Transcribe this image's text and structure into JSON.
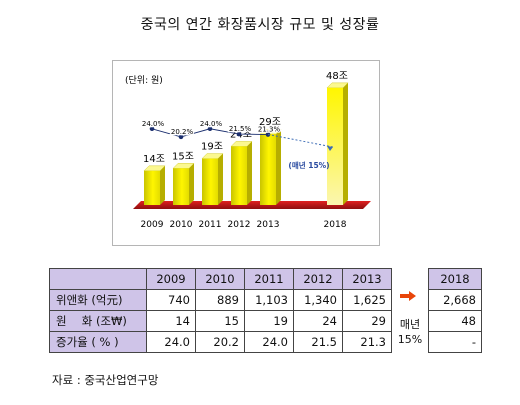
{
  "title": "중국의 연간 화장품시장 규모 및 성장률",
  "chart_data": {
    "type": "bar",
    "unit_label": "(단위: 원)",
    "categories": [
      "2009",
      "2010",
      "2011",
      "2012",
      "2013",
      "2018"
    ],
    "values": [
      14,
      15,
      19,
      24,
      29,
      48
    ],
    "value_labels": [
      "14조",
      "15조",
      "19조",
      "24조",
      "29조",
      "48조"
    ],
    "growth_rates": [
      24.0,
      20.2,
      24.0,
      21.5,
      21.3
    ],
    "growth_labels": [
      "24.0%",
      "20.2%",
      "24.0%",
      "21.5%",
      "21.3%"
    ],
    "projection_label": "(매년 15%)",
    "ylim": [
      0,
      50
    ],
    "growth_ylim": [
      0,
      40
    ],
    "colors": {
      "bar": "#f2ee00",
      "floor": "#c31a1a",
      "growth_line": "#1a2e6e",
      "projection": "#3b6bb5",
      "projection_text": "#2a4ba0"
    }
  },
  "table": {
    "corner": "",
    "years": [
      "2009",
      "2010",
      "2011",
      "2012",
      "2013"
    ],
    "rows": [
      {
        "label": "위앤화 (억元)",
        "values": [
          "740",
          "889",
          "1,103",
          "1,340",
          "1,625"
        ]
      },
      {
        "label": "원　 화 (조₩)",
        "values": [
          "14",
          "15",
          "19",
          "24",
          "29"
        ]
      },
      {
        "label": "증가율 ( % )",
        "values": [
          "24.0",
          "20.2",
          "24.0",
          "21.5",
          "21.3"
        ]
      }
    ]
  },
  "projection": {
    "year": "2018",
    "values": [
      "2,668",
      "48",
      "-"
    ],
    "arrow_color": "#e8450a",
    "growth_line1": "매년",
    "growth_line2": "15%"
  },
  "source": "자료 : 중국산업연구망"
}
